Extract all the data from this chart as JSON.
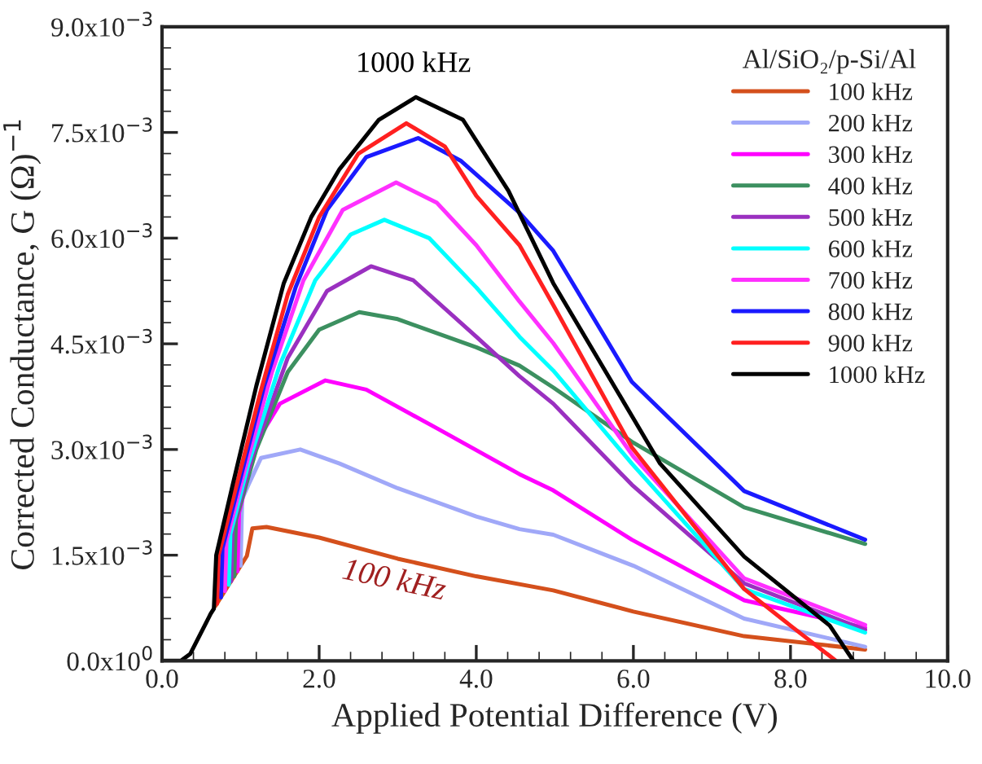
{
  "chart_data": {
    "type": "line",
    "xlabel": "Applied Potential Difference (V)",
    "ylabel": "Corrected Conductance, G (Ω)$^{−1}$",
    "legend_title": "Al/SiO₂/p-Si/Al",
    "xlim": [
      0,
      10
    ],
    "xticks": [
      {
        "value": 0,
        "label": "0.0"
      },
      {
        "value": 2,
        "label": "2.0"
      },
      {
        "value": 4,
        "label": "4.0"
      },
      {
        "value": 6,
        "label": "6.0"
      },
      {
        "value": 8,
        "label": "8.0"
      },
      {
        "value": 10,
        "label": "10.0"
      }
    ],
    "ylim": [
      0,
      0.009
    ],
    "yticks": [
      {
        "value": 0,
        "label": "0.0x10$^{0}$"
      },
      {
        "value": 0.0015,
        "label": "1.5x10$^{−3}$"
      },
      {
        "value": 0.003,
        "label": "3.0x10$^{−3}$"
      },
      {
        "value": 0.0045,
        "label": "4.5x10$^{−3}$"
      },
      {
        "value": 0.006,
        "label": "6.0x10$^{−3}$"
      },
      {
        "value": 0.0075,
        "label": "7.5x10$^{−3}$"
      },
      {
        "value": 0.009,
        "label": "9.0x10$^{−3}$"
      }
    ],
    "grid": false,
    "legend": "top right",
    "marker": "none",
    "line_style": "solid",
    "annotations": [
      "1000 kHz",
      "100 kHz"
    ],
    "series": [
      {
        "name": "100 kHz",
        "color": "#d4501c",
        "x": [
          0.68,
          1.08,
          1.15,
          1.33,
          2.0,
          3.0,
          4.0,
          4.98,
          6.0,
          7.41,
          8.95
        ],
        "values": [
          0.00078,
          0.00149,
          0.00188,
          0.0019,
          0.00175,
          0.00145,
          0.0012,
          0.001,
          0.0007,
          0.00035,
          0.00016
        ]
      },
      {
        "name": "200 kHz",
        "color": "#a0a8f8",
        "x": [
          1.0,
          1.02,
          1.1,
          1.26,
          1.76,
          2.26,
          3.0,
          4.0,
          4.55,
          4.98,
          6.0,
          7.41,
          8.95
        ],
        "values": [
          0.00135,
          0.0023,
          0.0025,
          0.00288,
          0.003,
          0.0028,
          0.00245,
          0.00205,
          0.00187,
          0.00179,
          0.00135,
          0.0006,
          0.0002
        ]
      },
      {
        "name": "300 kHz",
        "color": "#ff00ff",
        "x": [
          0.96,
          0.98,
          1.2,
          1.5,
          2.08,
          2.6,
          3.5,
          4.55,
          4.98,
          5.98,
          7.41,
          8.95
        ],
        "values": [
          0.00127,
          0.0021,
          0.0031,
          0.00365,
          0.00398,
          0.00385,
          0.0033,
          0.00265,
          0.00242,
          0.00172,
          0.00086,
          0.00047
        ]
      },
      {
        "name": "400 kHz",
        "color": "#3c9060",
        "x": [
          0.92,
          0.94,
          1.2,
          1.6,
          2.0,
          2.51,
          3.0,
          4.0,
          4.55,
          4.98,
          5.98,
          7.41,
          8.95
        ],
        "values": [
          0.0012,
          0.002,
          0.003,
          0.0041,
          0.0047,
          0.00495,
          0.00485,
          0.00445,
          0.00419,
          0.00388,
          0.00311,
          0.00218,
          0.00166
        ]
      },
      {
        "name": "500 kHz",
        "color": "#9a30c0",
        "x": [
          0.88,
          0.9,
          1.15,
          1.6,
          2.1,
          2.66,
          3.2,
          4.0,
          4.55,
          4.98,
          5.98,
          7.41,
          8.95
        ],
        "values": [
          0.00113,
          0.0019,
          0.0029,
          0.0043,
          0.00525,
          0.0056,
          0.0054,
          0.0046,
          0.00404,
          0.00365,
          0.0025,
          0.0011,
          0.00044
        ]
      },
      {
        "name": "600 kHz",
        "color": "#00ffff",
        "x": [
          0.85,
          0.87,
          1.1,
          1.5,
          1.95,
          2.4,
          2.83,
          3.4,
          4.0,
          4.55,
          4.98,
          5.98,
          7.41,
          8.95
        ],
        "values": [
          0.00108,
          0.0018,
          0.0028,
          0.0042,
          0.0054,
          0.00605,
          0.00626,
          0.006,
          0.0053,
          0.0046,
          0.00412,
          0.0028,
          0.00102,
          0.0004
        ]
      },
      {
        "name": "700 kHz",
        "color": "#ff30ff",
        "x": [
          0.8,
          0.82,
          1.05,
          1.4,
          1.8,
          2.3,
          2.98,
          3.5,
          4.0,
          4.55,
          4.98,
          6.0,
          7.41,
          8.95
        ],
        "values": [
          0.00099,
          0.0017,
          0.0027,
          0.0041,
          0.0054,
          0.0064,
          0.00679,
          0.0065,
          0.0059,
          0.0051,
          0.00451,
          0.0029,
          0.00117,
          0.00051
        ]
      },
      {
        "name": "800 kHz",
        "color": "#1a1aff",
        "x": [
          0.75,
          0.77,
          1.0,
          1.3,
          1.7,
          2.1,
          2.6,
          3.26,
          3.8,
          4.55,
          4.98,
          5.98,
          7.41,
          8.95
        ],
        "values": [
          0.0009,
          0.0016,
          0.0026,
          0.0039,
          0.0053,
          0.0064,
          0.00715,
          0.00742,
          0.0071,
          0.00636,
          0.00582,
          0.00396,
          0.00241,
          0.00172
        ]
      },
      {
        "name": "900 kHz",
        "color": "#ff2020",
        "x": [
          0.7,
          0.72,
          0.95,
          1.25,
          1.6,
          2.0,
          2.5,
          3.11,
          3.6,
          4.0,
          4.55,
          4.98,
          5.98,
          7.41,
          8.0,
          8.58
        ],
        "values": [
          0.00081,
          0.0015,
          0.0025,
          0.0038,
          0.0052,
          0.0063,
          0.0072,
          0.00763,
          0.0073,
          0.0066,
          0.0059,
          0.00505,
          0.00303,
          0.00102,
          0.0005,
          0
        ]
      },
      {
        "name": "1000 kHz",
        "color": "#000000",
        "x": [
          0,
          0.24,
          0.36,
          0.62,
          0.66,
          0.69,
          0.9,
          1.2,
          1.55,
          1.9,
          2.26,
          2.76,
          3.23,
          3.83,
          4.41,
          4.98,
          6.34,
          7.41,
          8.5,
          8.8
        ],
        "values": [
          0,
          0,
          0.0001,
          0.00067,
          0.00074,
          0.0015,
          0.0025,
          0.0039,
          0.00536,
          0.0063,
          0.00698,
          0.00768,
          0.008,
          0.00768,
          0.00667,
          0.00536,
          0.0028,
          0.00148,
          0.0005,
          0
        ]
      }
    ]
  }
}
